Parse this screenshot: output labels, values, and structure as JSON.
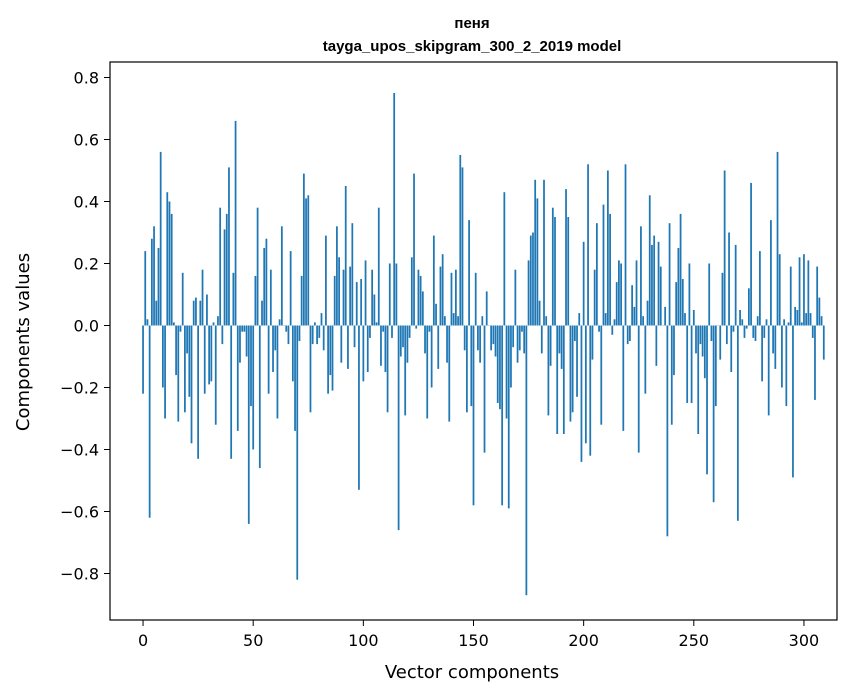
{
  "chart_data": {
    "type": "bar",
    "title_line1": "пеня",
    "title_line2": "tayga_upos_skipgram_300_2_2019 model",
    "xlabel": "Vector components",
    "ylabel": "Components values",
    "xlim": [
      -15,
      315
    ],
    "ylim": [
      -0.95,
      0.85
    ],
    "xticks": [
      0,
      50,
      100,
      150,
      200,
      250,
      300
    ],
    "xtick_labels": [
      "0",
      "50",
      "100",
      "150",
      "200",
      "250",
      "300"
    ],
    "yticks": [
      -0.8,
      -0.6,
      -0.4,
      -0.2,
      0.0,
      0.2,
      0.4,
      0.6,
      0.8
    ],
    "ytick_labels": [
      "−0.8",
      "−0.6",
      "−0.4",
      "−0.2",
      "0.0",
      "0.2",
      "0.4",
      "0.6",
      "0.8"
    ],
    "bar_color": "#1f77b4",
    "grid": false,
    "values": [
      -0.22,
      0.24,
      0.02,
      -0.62,
      0.28,
      0.32,
      0.08,
      0.25,
      0.56,
      -0.2,
      -0.3,
      0.43,
      0.4,
      0.36,
      0.01,
      -0.16,
      -0.31,
      -0.02,
      0.17,
      -0.28,
      -0.09,
      -0.23,
      -0.38,
      0.08,
      0.09,
      -0.43,
      0.08,
      0.18,
      -0.22,
      0.1,
      -0.19,
      -0.18,
      0.01,
      -0.32,
      0.03,
      0.38,
      -0.06,
      0.31,
      0.36,
      0.51,
      -0.43,
      0.17,
      0.66,
      -0.34,
      -0.12,
      -0.02,
      -0.02,
      -0.1,
      -0.64,
      -0.26,
      -0.4,
      0.16,
      0.38,
      -0.46,
      0.08,
      0.25,
      0.28,
      -0.22,
      0.18,
      -0.15,
      -0.08,
      -0.3,
      0.02,
      0.32,
      0.0,
      -0.02,
      -0.06,
      0.24,
      -0.18,
      -0.34,
      -0.82,
      -0.05,
      0.16,
      0.49,
      0.41,
      0.42,
      -0.28,
      -0.06,
      0.01,
      -0.06,
      -0.04,
      0.04,
      -0.08,
      0.29,
      -0.22,
      -0.16,
      -0.21,
      0.16,
      0.32,
      0.22,
      -0.12,
      0.18,
      0.45,
      -0.14,
      0.19,
      0.33,
      -0.07,
      0.14,
      -0.53,
      0.15,
      -0.18,
      0.21,
      -0.15,
      -0.04,
      0.18,
      0.1,
      0.01,
      0.38,
      -0.13,
      -0.02,
      -0.15,
      -0.28,
      0.2,
      -0.04,
      0.75,
      0.2,
      -0.66,
      -0.1,
      -0.07,
      -0.29,
      -0.12,
      -0.04,
      0.22,
      0.49,
      -0.01,
      0.18,
      0.16,
      0.11,
      -0.09,
      -0.3,
      -0.02,
      -0.2,
      0.29,
      0.07,
      -0.14,
      0.19,
      0.23,
      0.03,
      -0.12,
      -0.31,
      0.17,
      0.04,
      0.18,
      0.03,
      0.55,
      0.51,
      -0.08,
      -0.28,
      0.34,
      -0.26,
      -0.58,
      0.17,
      -0.08,
      -0.12,
      0.03,
      -0.41,
      0.11,
      0.0,
      -0.08,
      -0.06,
      -0.1,
      -0.25,
      -0.27,
      -0.58,
      0.43,
      -0.3,
      -0.59,
      -0.2,
      -0.07,
      0.18,
      -0.12,
      -0.08,
      -0.02,
      -0.09,
      -0.87,
      0.21,
      0.29,
      0.3,
      0.47,
      0.41,
      0.08,
      -0.09,
      0.47,
      0.03,
      -0.29,
      -0.13,
      0.38,
      0.35,
      -0.35,
      -0.09,
      -0.14,
      -0.35,
      0.44,
      0.35,
      -0.31,
      -0.28,
      -0.05,
      -0.23,
      0.04,
      -0.44,
      0.27,
      -0.38,
      0.52,
      -0.42,
      -0.11,
      0.18,
      0.33,
      -0.02,
      -0.32,
      0.39,
      0.04,
      0.5,
      0.36,
      -0.03,
      0.02,
      0.14,
      0.21,
      0.2,
      -0.34,
      0.52,
      -0.06,
      -0.05,
      0.13,
      0.06,
      0.21,
      -0.41,
      0.32,
      0.03,
      -0.22,
      0.08,
      0.42,
      0.26,
      0.29,
      -0.13,
      0.27,
      0.19,
      0.0,
      0.06,
      -0.68,
      0.33,
      -0.32,
      -0.16,
      0.14,
      0.25,
      0.36,
      0.15,
      0.04,
      -0.25,
      0.2,
      -0.25,
      0.05,
      -0.09,
      -0.35,
      -0.06,
      -0.1,
      -0.17,
      -0.48,
      0.2,
      -0.05,
      -0.57,
      -0.26,
      0.0,
      -0.11,
      0.17,
      0.5,
      -0.06,
      0.3,
      -0.15,
      -0.02,
      0.26,
      -0.63,
      0.05,
      0.02,
      -0.04,
      -0.01,
      0.12,
      0.46,
      -0.04,
      -0.05,
      0.03,
      0.24,
      -0.18,
      -0.04,
      0.02,
      -0.29,
      0.34,
      -0.09,
      -0.14,
      0.56,
      0.23,
      -0.2,
      0.02,
      -0.26,
      0.01,
      0.19,
      -0.49,
      0.06,
      0.05,
      0.22,
      0.01,
      0.23,
      0.04,
      0.21,
      0.04,
      -0.04,
      -0.24,
      0.19,
      0.09,
      0.03,
      -0.11
    ]
  }
}
